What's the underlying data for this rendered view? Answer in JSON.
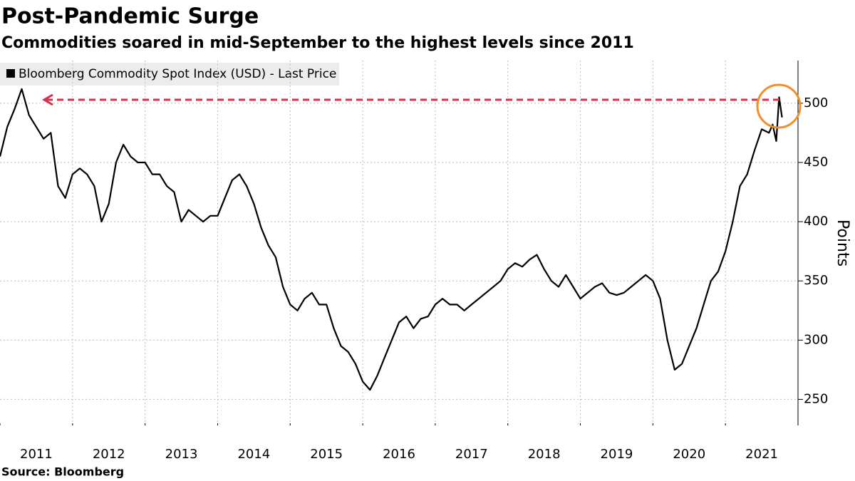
{
  "chart_data": {
    "type": "line",
    "title": "Post-Pandemic Surge",
    "subtitle": "Commodities soared in mid-September to the highest levels since 2011",
    "source": "Source: Bloomberg",
    "y_label": "Points",
    "legend": "top-left",
    "grid": true,
    "x": [
      2011.0,
      2011.1,
      2011.2,
      2011.3,
      2011.4,
      2011.5,
      2011.6,
      2011.7,
      2011.8,
      2011.9,
      2012.0,
      2012.1,
      2012.2,
      2012.3,
      2012.4,
      2012.5,
      2012.6,
      2012.7,
      2012.8,
      2012.9,
      2013.0,
      2013.1,
      2013.2,
      2013.3,
      2013.4,
      2013.5,
      2013.6,
      2013.7,
      2013.8,
      2013.9,
      2014.0,
      2014.1,
      2014.2,
      2014.3,
      2014.4,
      2014.5,
      2014.6,
      2014.7,
      2014.8,
      2014.9,
      2015.0,
      2015.1,
      2015.2,
      2015.3,
      2015.4,
      2015.5,
      2015.6,
      2015.7,
      2015.8,
      2015.9,
      2016.0,
      2016.1,
      2016.2,
      2016.3,
      2016.4,
      2016.5,
      2016.6,
      2016.7,
      2016.8,
      2016.9,
      2017.0,
      2017.1,
      2017.2,
      2017.3,
      2017.4,
      2017.5,
      2017.6,
      2017.7,
      2017.8,
      2017.9,
      2018.0,
      2018.1,
      2018.2,
      2018.3,
      2018.4,
      2018.5,
      2018.6,
      2018.7,
      2018.8,
      2018.9,
      2019.0,
      2019.1,
      2019.2,
      2019.3,
      2019.4,
      2019.5,
      2019.6,
      2019.7,
      2019.8,
      2019.9,
      2020.0,
      2020.1,
      2020.2,
      2020.3,
      2020.4,
      2020.5,
      2020.6,
      2020.7,
      2020.8,
      2020.9,
      2021.0,
      2021.1,
      2021.2,
      2021.3,
      2021.4,
      2021.5,
      2021.6,
      2021.65,
      2021.7,
      2021.74,
      2021.78
    ],
    "series": [
      {
        "name": "Bloomberg Commodity Spot Index (USD) - Last Price",
        "color": "#000000",
        "values": [
          455,
          480,
          495,
          512,
          490,
          480,
          470,
          475,
          430,
          420,
          440,
          445,
          440,
          430,
          400,
          415,
          450,
          465,
          455,
          450,
          450,
          440,
          440,
          430,
          425,
          400,
          410,
          405,
          400,
          405,
          405,
          420,
          435,
          440,
          430,
          415,
          395,
          380,
          370,
          345,
          330,
          325,
          335,
          340,
          330,
          330,
          310,
          295,
          290,
          280,
          265,
          258,
          270,
          285,
          300,
          315,
          320,
          310,
          318,
          320,
          330,
          335,
          330,
          330,
          325,
          330,
          335,
          340,
          345,
          350,
          360,
          365,
          362,
          368,
          372,
          360,
          350,
          345,
          355,
          345,
          335,
          340,
          345,
          348,
          340,
          338,
          340,
          345,
          350,
          355,
          350,
          335,
          300,
          275,
          280,
          295,
          310,
          330,
          350,
          358,
          375,
          400,
          430,
          440,
          460,
          478,
          475,
          482,
          468,
          505,
          488
        ]
      }
    ],
    "xlim": [
      2011,
      2022
    ],
    "xticks": [
      2011,
      2012,
      2013,
      2014,
      2015,
      2016,
      2017,
      2018,
      2019,
      2020,
      2021
    ],
    "ylim": [
      228,
      536
    ],
    "yticks": [
      250,
      300,
      350,
      400,
      450,
      500
    ]
  }
}
